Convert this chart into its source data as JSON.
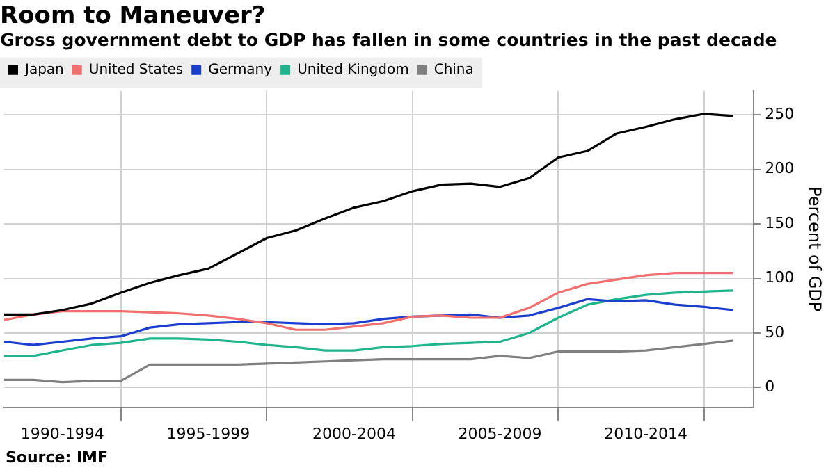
{
  "chart_data": {
    "type": "line",
    "title": "Room to Maneuver?",
    "subtitle": "Gross government debt to GDP has fallen in some countries in the past decade",
    "ylabel": "Percent of GDP",
    "annotations": [
      "Source: IMF"
    ],
    "categories": [
      null,
      null,
      "1990-1994",
      null,
      null,
      null,
      null,
      "1995-1999",
      null,
      null,
      null,
      null,
      "2000-2004",
      null,
      null,
      null,
      null,
      "2005-2009",
      null,
      null,
      null,
      null,
      "2010-2014",
      null,
      null,
      null
    ],
    "series": [
      {
        "name": "Japan",
        "color": "#000000",
        "values": [
          67,
          67,
          71,
          77,
          87,
          96,
          103,
          109,
          123,
          137,
          144,
          155,
          165,
          171,
          180,
          186,
          187,
          184,
          192,
          211,
          217,
          233,
          239,
          246,
          251,
          249
        ]
      },
      {
        "name": "United States",
        "color": "#f07070",
        "values": [
          62,
          67,
          70,
          70,
          70,
          69,
          68,
          66,
          63,
          59,
          53,
          53,
          56,
          59,
          65,
          66,
          64,
          64,
          73,
          87,
          95,
          99,
          103,
          105,
          105,
          105
        ]
      },
      {
        "name": "Germany",
        "color": "#1a3fcc",
        "values": [
          42,
          39,
          42,
          45,
          47,
          55,
          58,
          59,
          60,
          60,
          59,
          58,
          59,
          63,
          65,
          66,
          67,
          64,
          66,
          73,
          81,
          79,
          80,
          76,
          74,
          71
        ]
      },
      {
        "name": "United Kingdom",
        "color": "#1fb48c",
        "values": [
          29,
          29,
          34,
          39,
          41,
          45,
          45,
          44,
          42,
          39,
          37,
          34,
          34,
          37,
          38,
          40,
          41,
          42,
          50,
          64,
          76,
          81,
          85,
          87,
          88,
          89
        ]
      },
      {
        "name": "China",
        "color": "#808080",
        "values": [
          7,
          7,
          5,
          6,
          6,
          21,
          21,
          21,
          21,
          22,
          23,
          24,
          25,
          26,
          26,
          26,
          26,
          29,
          27,
          33,
          33,
          33,
          34,
          37,
          40,
          43
        ]
      }
    ],
    "ylim": [
      -18,
      272
    ],
    "yticks": [
      0,
      50,
      100,
      150,
      200,
      250
    ],
    "grid": true,
    "legend": "top left",
    "marker": "none",
    "line_style": "solid"
  }
}
